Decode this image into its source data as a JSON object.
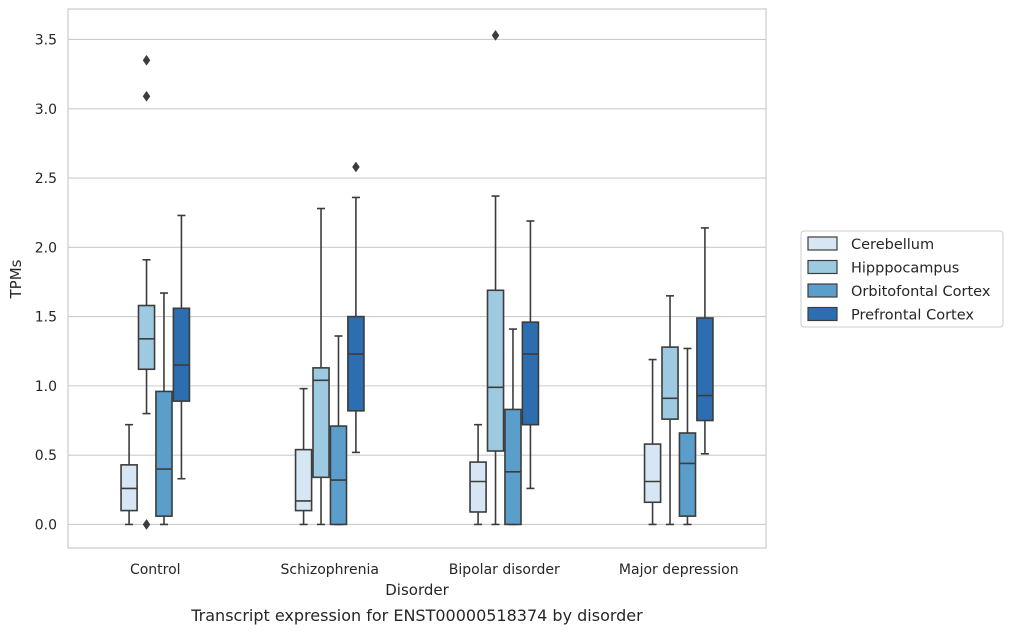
{
  "caption": "Transcript expression for ENST00000518374 by disorder",
  "chart_data": {
    "type": "box",
    "title": "",
    "xlabel": "Disorder",
    "ylabel": "TPMs",
    "ylim": [
      -0.17,
      3.72
    ],
    "yticks": [
      "0.0",
      "0.5",
      "1.0",
      "1.5",
      "2.0",
      "2.5",
      "3.0",
      "3.5"
    ],
    "ytick_values": [
      0,
      0.5,
      1.0,
      1.5,
      2.0,
      2.5,
      3.0,
      3.5
    ],
    "grid": "horizontal",
    "legend_position": "right",
    "categories": [
      "Control",
      "Schizophrenia",
      "Bipolar disorder",
      "Major depression"
    ],
    "series": [
      {
        "name": "Cerebellum",
        "color": "#d6e6f4",
        "boxes": [
          {
            "whislo": 0.0,
            "q1": 0.1,
            "med": 0.26,
            "q3": 0.43,
            "whishi": 0.72,
            "fliers": []
          },
          {
            "whislo": 0.0,
            "q1": 0.1,
            "med": 0.17,
            "q3": 0.54,
            "whishi": 0.98,
            "fliers": []
          },
          {
            "whislo": 0.0,
            "q1": 0.09,
            "med": 0.31,
            "q3": 0.45,
            "whishi": 0.72,
            "fliers": []
          },
          {
            "whislo": 0.0,
            "q1": 0.16,
            "med": 0.31,
            "q3": 0.58,
            "whishi": 1.19,
            "fliers": []
          }
        ]
      },
      {
        "name": "Hipppocampus",
        "color": "#9ecae1",
        "boxes": [
          {
            "whislo": 0.8,
            "q1": 1.12,
            "med": 1.34,
            "q3": 1.58,
            "whishi": 1.91,
            "fliers": [
              3.09,
              3.35,
              0.0
            ]
          },
          {
            "whislo": 0.0,
            "q1": 0.34,
            "med": 1.04,
            "q3": 1.13,
            "whishi": 2.28,
            "fliers": []
          },
          {
            "whislo": 0.0,
            "q1": 0.53,
            "med": 0.99,
            "q3": 1.69,
            "whishi": 2.37,
            "fliers": [
              3.53
            ]
          },
          {
            "whislo": 0.0,
            "q1": 0.76,
            "med": 0.91,
            "q3": 1.28,
            "whishi": 1.65,
            "fliers": []
          }
        ]
      },
      {
        "name": "Orbitofontal Cortex",
        "color": "#5b9ecc",
        "boxes": [
          {
            "whislo": 0.0,
            "q1": 0.06,
            "med": 0.4,
            "q3": 0.96,
            "whishi": 1.67,
            "fliers": []
          },
          {
            "whislo": 0.0,
            "q1": 0.0,
            "med": 0.32,
            "q3": 0.71,
            "whishi": 1.36,
            "fliers": []
          },
          {
            "whislo": 0.0,
            "q1": 0.0,
            "med": 0.38,
            "q3": 0.83,
            "whishi": 1.41,
            "fliers": []
          },
          {
            "whislo": 0.0,
            "q1": 0.06,
            "med": 0.44,
            "q3": 0.66,
            "whishi": 1.27,
            "fliers": []
          }
        ]
      },
      {
        "name": "Prefrontal Cortex",
        "color": "#2d6eb1",
        "boxes": [
          {
            "whislo": 0.33,
            "q1": 0.89,
            "med": 1.15,
            "q3": 1.56,
            "whishi": 2.23,
            "fliers": []
          },
          {
            "whislo": 0.52,
            "q1": 0.82,
            "med": 1.23,
            "q3": 1.5,
            "whishi": 2.36,
            "fliers": [
              2.58
            ]
          },
          {
            "whislo": 0.26,
            "q1": 0.72,
            "med": 1.23,
            "q3": 1.46,
            "whishi": 2.19,
            "fliers": []
          },
          {
            "whislo": 0.51,
            "q1": 0.75,
            "med": 0.93,
            "q3": 1.49,
            "whishi": 2.14,
            "fliers": []
          }
        ]
      }
    ]
  }
}
